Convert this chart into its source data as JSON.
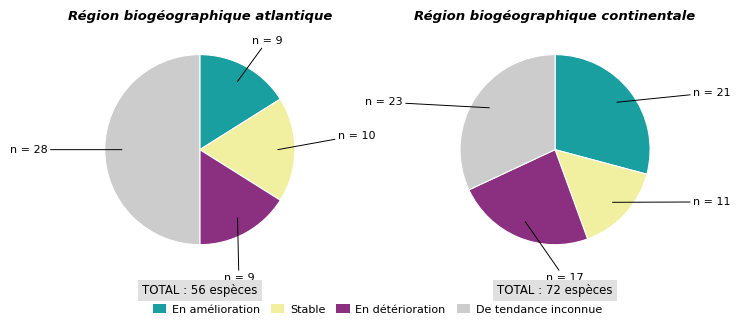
{
  "chart1": {
    "title": "Région biogéographique atlantique",
    "total_label": "TOTAL : 56 espèces",
    "values": [
      9,
      10,
      9,
      28
    ],
    "labels": [
      "n = 9",
      "n = 10",
      "n = 9",
      "n = 28"
    ],
    "colors": [
      "#1a9fa0",
      "#f0f0a0",
      "#8b3080",
      "#cccccc"
    ],
    "label_positions": [
      [
        0.55,
        1.15,
        "left"
      ],
      [
        1.45,
        0.15,
        "left"
      ],
      [
        0.25,
        -1.35,
        "left"
      ],
      [
        -1.6,
        0.0,
        "right"
      ]
    ]
  },
  "chart2": {
    "title": "Région biogéographique continentale",
    "total_label": "TOTAL : 72 espèces",
    "values": [
      21,
      11,
      17,
      23
    ],
    "labels": [
      "n = 21",
      "n = 11",
      "n = 17",
      "n = 23"
    ],
    "colors": [
      "#1a9fa0",
      "#f0f0a0",
      "#8b3080",
      "#cccccc"
    ],
    "label_positions": [
      [
        1.45,
        0.6,
        "left"
      ],
      [
        1.45,
        -0.55,
        "left"
      ],
      [
        -0.1,
        -1.35,
        "left"
      ],
      [
        -1.6,
        0.5,
        "right"
      ]
    ]
  },
  "legend_labels": [
    "En amélioration",
    "Stable",
    "En détérioration",
    "De tendance inconnue"
  ],
  "legend_colors": [
    "#1a9fa0",
    "#f0f0a0",
    "#8b3080",
    "#cccccc"
  ],
  "background_color": "#ffffff",
  "total_bg_color": "#e0e0e0"
}
